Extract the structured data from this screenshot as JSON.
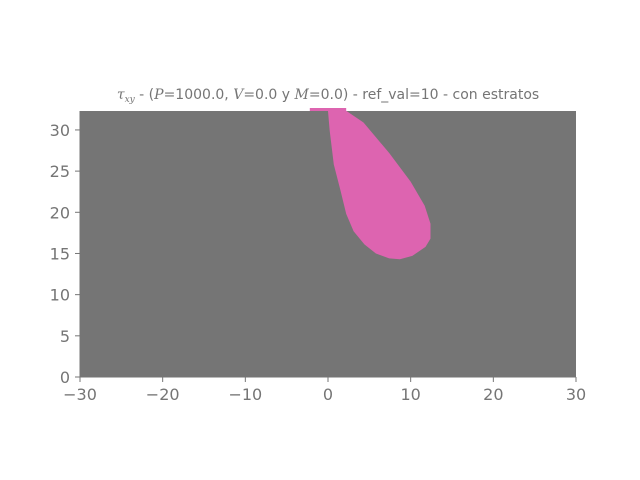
{
  "chart_data": {
    "type": "heatmap",
    "title": {
      "tau_symbol": "τ",
      "tau_subscript": "xy",
      "part1": " - (",
      "P_symbol": "P",
      "part2": "=1000.0, ",
      "V_symbol": "V",
      "part3": "=0.0 y ",
      "M_symbol": "M",
      "part4": "=0.0) - ref_val=10 - con estratos"
    },
    "xlabel": "",
    "ylabel": "",
    "xlim": [
      -30,
      30
    ],
    "ylim": [
      0,
      32.3
    ],
    "x_ticks": [
      -30,
      -20,
      -10,
      0,
      10,
      20,
      30
    ],
    "x_tick_labels": [
      "−30",
      "−20",
      "−10",
      "0",
      "10",
      "20",
      "30"
    ],
    "y_ticks": [
      0,
      5,
      10,
      15,
      20,
      25,
      30
    ],
    "y_tick_labels": [
      "0",
      "5",
      "10",
      "15",
      "20",
      "25",
      "30"
    ],
    "background_region": {
      "x_range": [
        -30,
        30
      ],
      "y_range": [
        0,
        32.3
      ],
      "color": "#757575"
    },
    "highlight_region": {
      "color": "#dd64b0",
      "boundary": [
        [
          0,
          32.6
        ],
        [
          2.1,
          32.4
        ],
        [
          4.3,
          30.9
        ],
        [
          7.4,
          27.2
        ],
        [
          10.0,
          23.7
        ],
        [
          11.7,
          20.8
        ],
        [
          12.4,
          18.6
        ],
        [
          12.4,
          16.8
        ],
        [
          11.8,
          15.8
        ],
        [
          10.2,
          14.7
        ],
        [
          8.7,
          14.3
        ],
        [
          7.4,
          14.4
        ],
        [
          5.8,
          15.0
        ],
        [
          4.4,
          16.1
        ],
        [
          3.1,
          17.7
        ],
        [
          2.2,
          19.8
        ],
        [
          1.5,
          22.7
        ],
        [
          0.7,
          25.8
        ],
        [
          0.2,
          29.9
        ],
        [
          0,
          32.3
        ]
      ]
    },
    "load_strip": {
      "x_range": [
        -2.2,
        2.2
      ],
      "color": "#dd64b0"
    },
    "colors": {
      "axis": "#757575",
      "text": "#757575",
      "title": "#757575"
    },
    "grid": false,
    "legend": "none"
  }
}
